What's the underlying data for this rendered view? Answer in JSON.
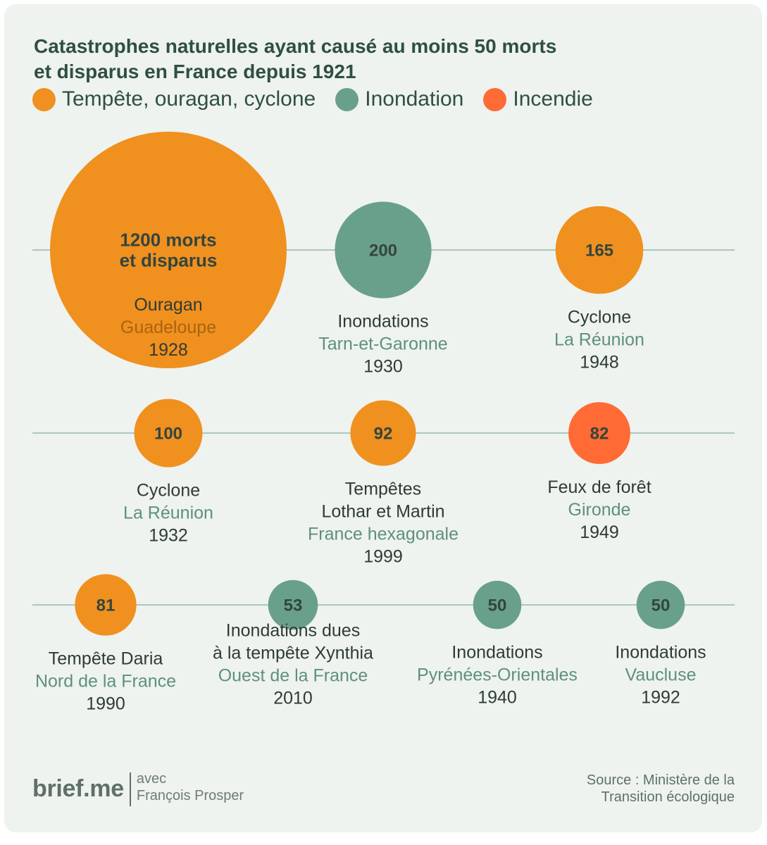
{
  "title": {
    "line1": "Catastrophes naturelles ayant causé au moins 50 morts",
    "line2": "et disparus en France depuis 1921"
  },
  "legend": [
    {
      "label": "Tempête, ouragan, cyclone",
      "color": "#f0901f"
    },
    {
      "label": "Inondation",
      "color": "#69a08c"
    },
    {
      "label": "Incendie",
      "color": "#ff6a35"
    }
  ],
  "chart_data": {
    "type": "bubble",
    "title": "Catastrophes naturelles ayant causé au moins 50 morts et disparus en France depuis 1921",
    "legend_position": "top-left",
    "categories": [
      "Tempête, ouragan, cyclone",
      "Inondation",
      "Incendie"
    ],
    "items": [
      {
        "value": 1200,
        "label": "1200 morts\net disparus",
        "category": "Tempête, ouragan, cyclone",
        "event": "Ouragan",
        "place": "Guadeloupe",
        "year": "1928"
      },
      {
        "value": 200,
        "label": "200",
        "category": "Inondation",
        "event": "Inondations",
        "place": "Tarn-et-Garonne",
        "year": "1930"
      },
      {
        "value": 165,
        "label": "165",
        "category": "Tempête, ouragan, cyclone",
        "event": "Cyclone",
        "place": "La Réunion",
        "year": "1948"
      },
      {
        "value": 100,
        "label": "100",
        "category": "Tempête, ouragan, cyclone",
        "event": "Cyclone",
        "place": "La Réunion",
        "year": "1932"
      },
      {
        "value": 92,
        "label": "92",
        "category": "Tempête, ouragan, cyclone",
        "event": "Tempêtes\nLothar et Martin",
        "place": "France hexagonale",
        "year": "1999"
      },
      {
        "value": 82,
        "label": "82",
        "category": "Incendie",
        "event": "Feux de forêt",
        "place": "Gironde",
        "year": "1949"
      },
      {
        "value": 81,
        "label": "81",
        "category": "Tempête, ouragan, cyclone",
        "event": "Tempête Daria",
        "place": "Nord de la France",
        "year": "1990"
      },
      {
        "value": 53,
        "label": "53",
        "category": "Inondation",
        "event": "Inondations dues\nà la tempête Xynthia",
        "place": "Ouest de la France",
        "year": "2010"
      },
      {
        "value": 50,
        "label": "50",
        "category": "Inondation",
        "event": "Inondations",
        "place": "Pyrénées-Orientales",
        "year": "1940"
      },
      {
        "value": 50,
        "label": "50",
        "category": "Inondation",
        "event": "Inondations",
        "place": "Vaucluse",
        "year": "1992"
      }
    ]
  },
  "footer": {
    "brand": "brief.me",
    "credit_line1": "avec",
    "credit_line2": "François Prosper",
    "source_line1": "Source : Ministère de la",
    "source_line2": "Transition écologique"
  },
  "colors": {
    "background": "#eef3ef",
    "title": "#2f4f43",
    "text_dark": "#2f3b35",
    "text_place": "#5e907d",
    "text_place_on_orange": "#a86510",
    "line": "#97b8ab",
    "bubble_label": "#33453d"
  }
}
